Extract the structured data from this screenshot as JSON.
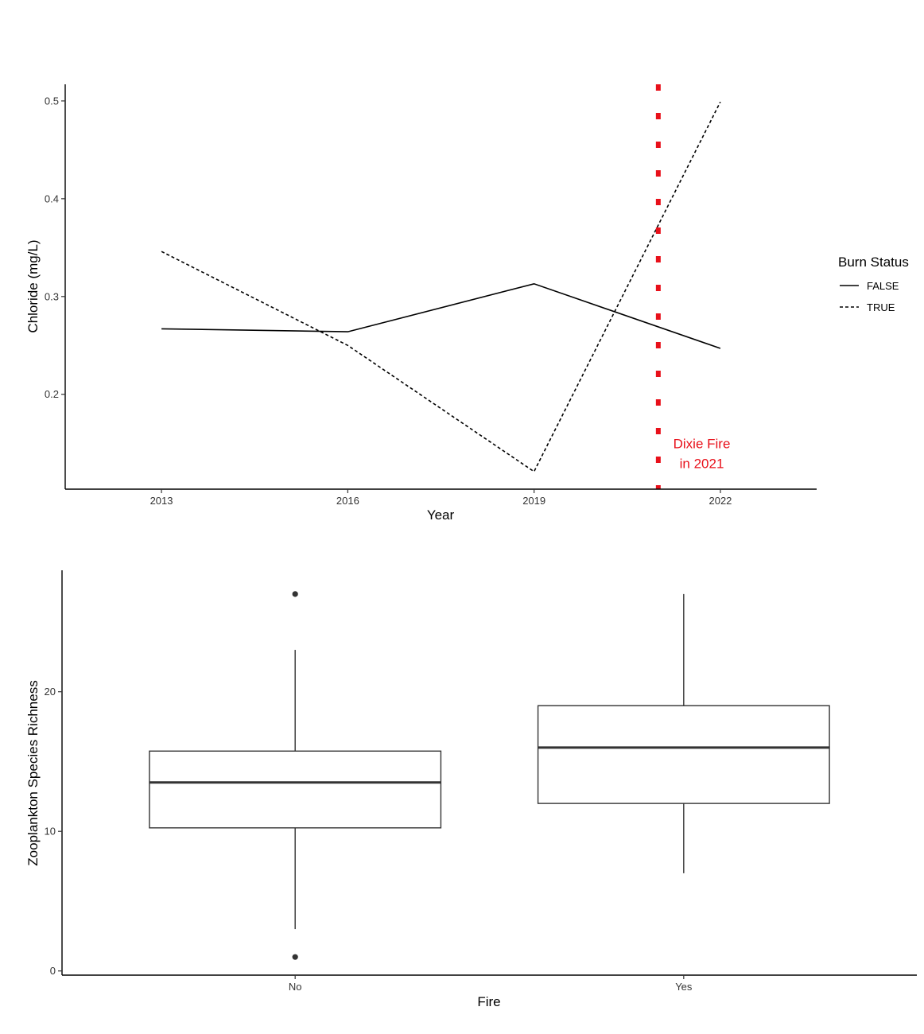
{
  "chart_data": [
    {
      "type": "line",
      "xlabel": "Year",
      "ylabel": "Chloride (mg/L)",
      "x_ticks": [
        2013,
        2016,
        2019,
        2022
      ],
      "y_ticks": [
        0.2,
        0.3,
        0.4,
        0.5
      ],
      "y_tick_labels": [
        "0.2",
        "0.3",
        "0.4",
        "0.5"
      ],
      "xlim": [
        2011.45,
        2023.55
      ],
      "ylim": [
        0.103,
        0.517
      ],
      "grid": false,
      "legend": {
        "title": "Burn Status",
        "position": "right",
        "entries": [
          {
            "label": "FALSE",
            "linetype": "solid"
          },
          {
            "label": "TRUE",
            "linetype": "dashed"
          }
        ]
      },
      "series": [
        {
          "name": "FALSE",
          "linetype": "solid",
          "x": [
            2013,
            2016,
            2019,
            2022
          ],
          "y": [
            0.267,
            0.264,
            0.313,
            0.247
          ]
        },
        {
          "name": "TRUE",
          "linetype": "dashed",
          "x": [
            2013,
            2016,
            2019,
            2022
          ],
          "y": [
            0.346,
            0.25,
            0.121,
            0.499
          ]
        }
      ],
      "vline": {
        "x": 2021,
        "color": "#e8101a",
        "linetype": "dotted"
      },
      "annotation": {
        "lines": [
          "Dixie  Fire",
          "in  2021"
        ],
        "x": 2021.7,
        "y": 0.14,
        "color": "#e8101a"
      }
    },
    {
      "type": "boxplot",
      "xlabel": "Fire",
      "ylabel": "Zooplankton  Species  Richness",
      "categories": [
        "No",
        "Yes"
      ],
      "y_ticks": [
        0,
        10,
        20
      ],
      "y_tick_labels": [
        "0",
        "10",
        "20"
      ],
      "ylim": [
        -0.3,
        28.7
      ],
      "grid": false,
      "boxes": [
        {
          "category": "No",
          "lower_whisker": 3,
          "q1": 10.25,
          "median": 13.5,
          "q3": 15.75,
          "upper_whisker": 23,
          "outliers": [
            1,
            27
          ]
        },
        {
          "category": "Yes",
          "lower_whisker": 7,
          "q1": 12,
          "median": 16,
          "q3": 19,
          "upper_whisker": 27,
          "outliers": []
        }
      ]
    }
  ]
}
